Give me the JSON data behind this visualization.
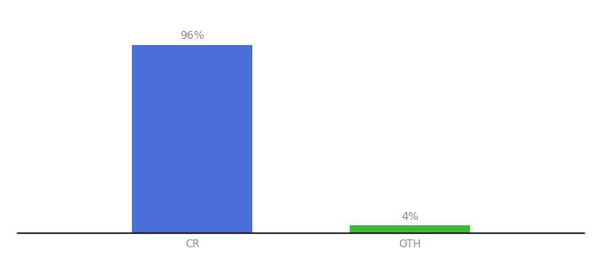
{
  "categories": [
    "CR",
    "OTH"
  ],
  "values": [
    96,
    4
  ],
  "bar_colors": [
    "#4a6fdb",
    "#3dba3d"
  ],
  "label_texts": [
    "96%",
    "4%"
  ],
  "background_color": "#ffffff",
  "text_color": "#8a8a8a",
  "label_fontsize": 9,
  "tick_fontsize": 8.5,
  "ylim": [
    0,
    108
  ],
  "bar_width": 0.55,
  "x_positions": [
    1,
    2
  ],
  "xlim": [
    0.2,
    2.8
  ],
  "figsize": [
    6.8,
    3.0
  ],
  "dpi": 100,
  "spine_color": "#111111"
}
